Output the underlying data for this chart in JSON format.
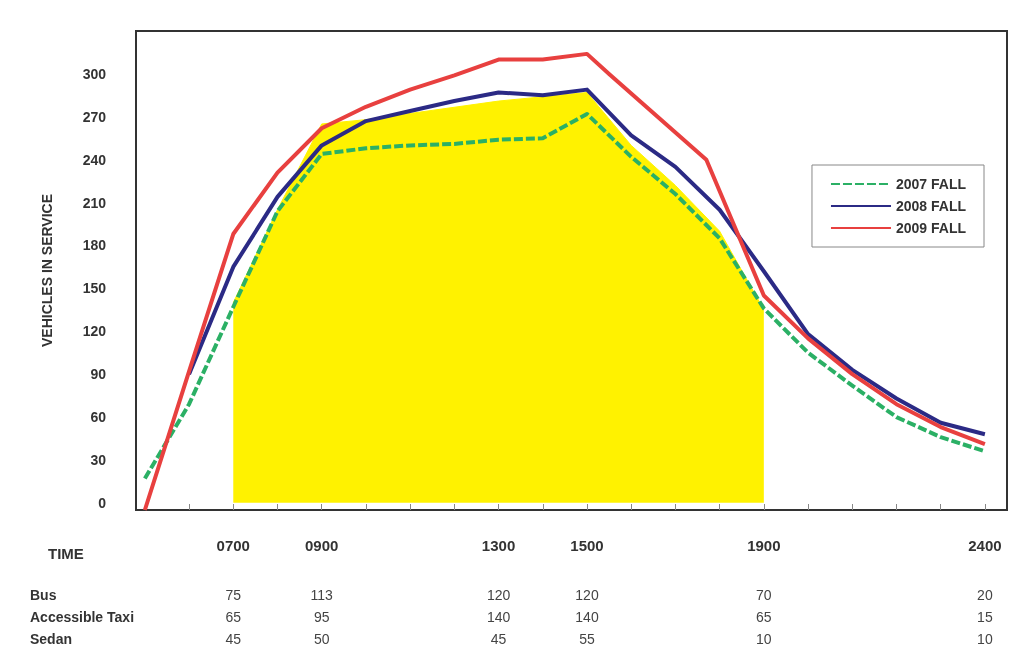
{
  "chart_data": {
    "type": "line",
    "ylabel": "VEHICLES IN SERVICE",
    "xlabel": "TIME",
    "xlim": [
      480,
      2450
    ],
    "ylim": [
      -5,
      330
    ],
    "xticks": [
      {
        "value": 600,
        "label": null
      },
      {
        "value": 700,
        "label": "0700"
      },
      {
        "value": 800,
        "label": null
      },
      {
        "value": 900,
        "label": "0900"
      },
      {
        "value": 1000,
        "label": null
      },
      {
        "value": 1100,
        "label": null
      },
      {
        "value": 1200,
        "label": null
      },
      {
        "value": 1300,
        "label": "1300"
      },
      {
        "value": 1400,
        "label": null
      },
      {
        "value": 1500,
        "label": "1500"
      },
      {
        "value": 1600,
        "label": null
      },
      {
        "value": 1700,
        "label": null
      },
      {
        "value": 1800,
        "label": null
      },
      {
        "value": 1900,
        "label": "1900"
      },
      {
        "value": 2000,
        "label": null
      },
      {
        "value": 2100,
        "label": null
      },
      {
        "value": 2200,
        "label": null
      },
      {
        "value": 2300,
        "label": null
      },
      {
        "value": 2400,
        "label": "2400"
      }
    ],
    "yticks": [
      0,
      30,
      60,
      90,
      120,
      150,
      180,
      210,
      240,
      270,
      300
    ],
    "grid": false,
    "legend": "right",
    "marker": "none",
    "series": [
      {
        "type": "area",
        "color": "#fff200",
        "x": [
          700,
          800,
          900,
          1000,
          1300,
          1500,
          1600,
          1700,
          1800,
          1900
        ],
        "values": [
          140,
          205,
          265,
          268,
          281,
          287,
          250,
          222,
          190,
          135
        ]
      },
      {
        "name": "2007 FALL",
        "color": "#2bb065",
        "line_style": "dashed",
        "x": [
          500,
          600,
          700,
          800,
          900,
          1000,
          1100,
          1200,
          1300,
          1400,
          1500,
          1600,
          1700,
          1800,
          1900,
          2000,
          2100,
          2200,
          2300,
          2400
        ],
        "values": [
          17,
          69,
          137,
          204,
          244,
          248,
          250,
          251,
          254,
          255,
          272,
          242,
          216,
          185,
          136,
          105,
          82,
          60,
          46,
          36
        ]
      },
      {
        "name": "2008 FALL",
        "color": "#2b2a85",
        "line_style": "solid",
        "x": [
          600,
          700,
          800,
          900,
          1000,
          1100,
          1200,
          1300,
          1400,
          1500,
          1600,
          1700,
          1800,
          1900,
          2000,
          2100,
          2200,
          2300,
          2400
        ],
        "values": [
          90,
          165,
          214,
          250,
          267,
          274,
          281,
          287,
          285,
          289,
          257,
          235,
          205,
          162,
          118,
          93,
          73,
          56,
          48
        ]
      },
      {
        "name": "2009 FALL",
        "color": "#e8403f",
        "line_style": "solid",
        "x": [
          500,
          600,
          700,
          800,
          900,
          1000,
          1100,
          1200,
          1300,
          1400,
          1500,
          1550,
          1770,
          1900,
          2000,
          2100,
          2200,
          2300,
          2400
        ],
        "values": [
          -5,
          92,
          188,
          231,
          262,
          277,
          289,
          299,
          310,
          310,
          314,
          300,
          240,
          145,
          115,
          90,
          69,
          53,
          41
        ]
      }
    ],
    "annotations": [
      "Bus",
      "75",
      "113",
      "120",
      "120",
      "70",
      "20",
      "Accessible Taxi",
      "65",
      "95",
      "140",
      "140",
      "65",
      "15",
      "Sedan",
      "45",
      "50",
      "45",
      "55",
      "10",
      "10"
    ]
  }
}
